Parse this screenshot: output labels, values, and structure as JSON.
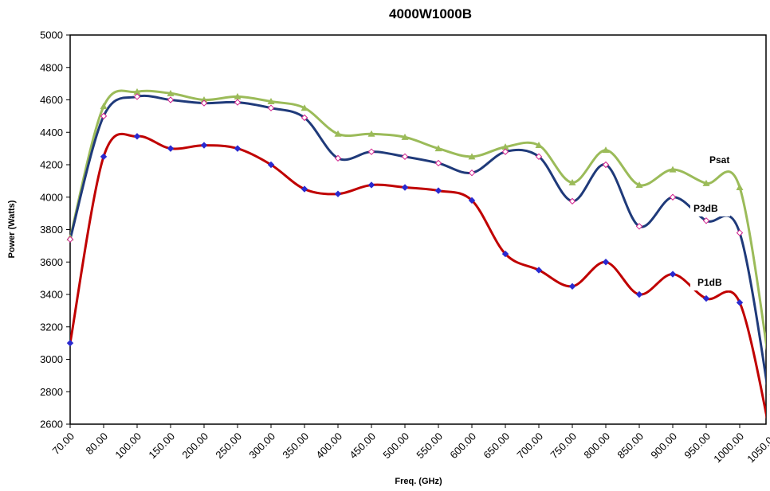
{
  "chart_data": {
    "type": "line",
    "title": "4000W1000B",
    "xlabel": "Freq. (GHz)",
    "ylabel": "Power (Watts)",
    "ylim": [
      2600,
      5000
    ],
    "yticks": [
      "2600",
      "2800",
      "3000",
      "3200",
      "3400",
      "3600",
      "3800",
      "4000",
      "4200",
      "4400",
      "4600",
      "4800",
      "5000"
    ],
    "categories": [
      "70.00",
      "80.00",
      "100.00",
      "150.00",
      "200.00",
      "250.00",
      "300.00",
      "350.00",
      "400.00",
      "450.00",
      "500.00",
      "550.00",
      "600.00",
      "650.00",
      "700.00",
      "750.00",
      "800.00",
      "850.00",
      "900.00",
      "950.00",
      "1000.00",
      "1050.00"
    ],
    "grid": false,
    "series": [
      {
        "name": "Psat",
        "color": "#9bbb59",
        "marker": "triangle",
        "values": [
          3750,
          4560,
          4650,
          4640,
          4600,
          4620,
          4590,
          4550,
          4390,
          4390,
          4370,
          4300,
          4250,
          4310,
          4320,
          4090,
          4290,
          4075,
          4170,
          4085,
          4060,
          2800
        ]
      },
      {
        "name": "P3dB",
        "color": "#1f3a7a",
        "marker": "diamond",
        "values": [
          3740,
          4500,
          4620,
          4600,
          4580,
          4585,
          4550,
          4490,
          4240,
          4280,
          4250,
          4210,
          4150,
          4280,
          4250,
          3975,
          4200,
          3820,
          4000,
          3855,
          3780,
          2600
        ]
      },
      {
        "name": "P1dB",
        "color": "#c00000",
        "marker": "diamond",
        "values": [
          3100,
          4250,
          4375,
          4300,
          4320,
          4300,
          4200,
          4050,
          4020,
          4075,
          4060,
          4040,
          3980,
          3650,
          3550,
          3450,
          3600,
          3400,
          3525,
          3375,
          3350,
          2450
        ]
      }
    ]
  }
}
